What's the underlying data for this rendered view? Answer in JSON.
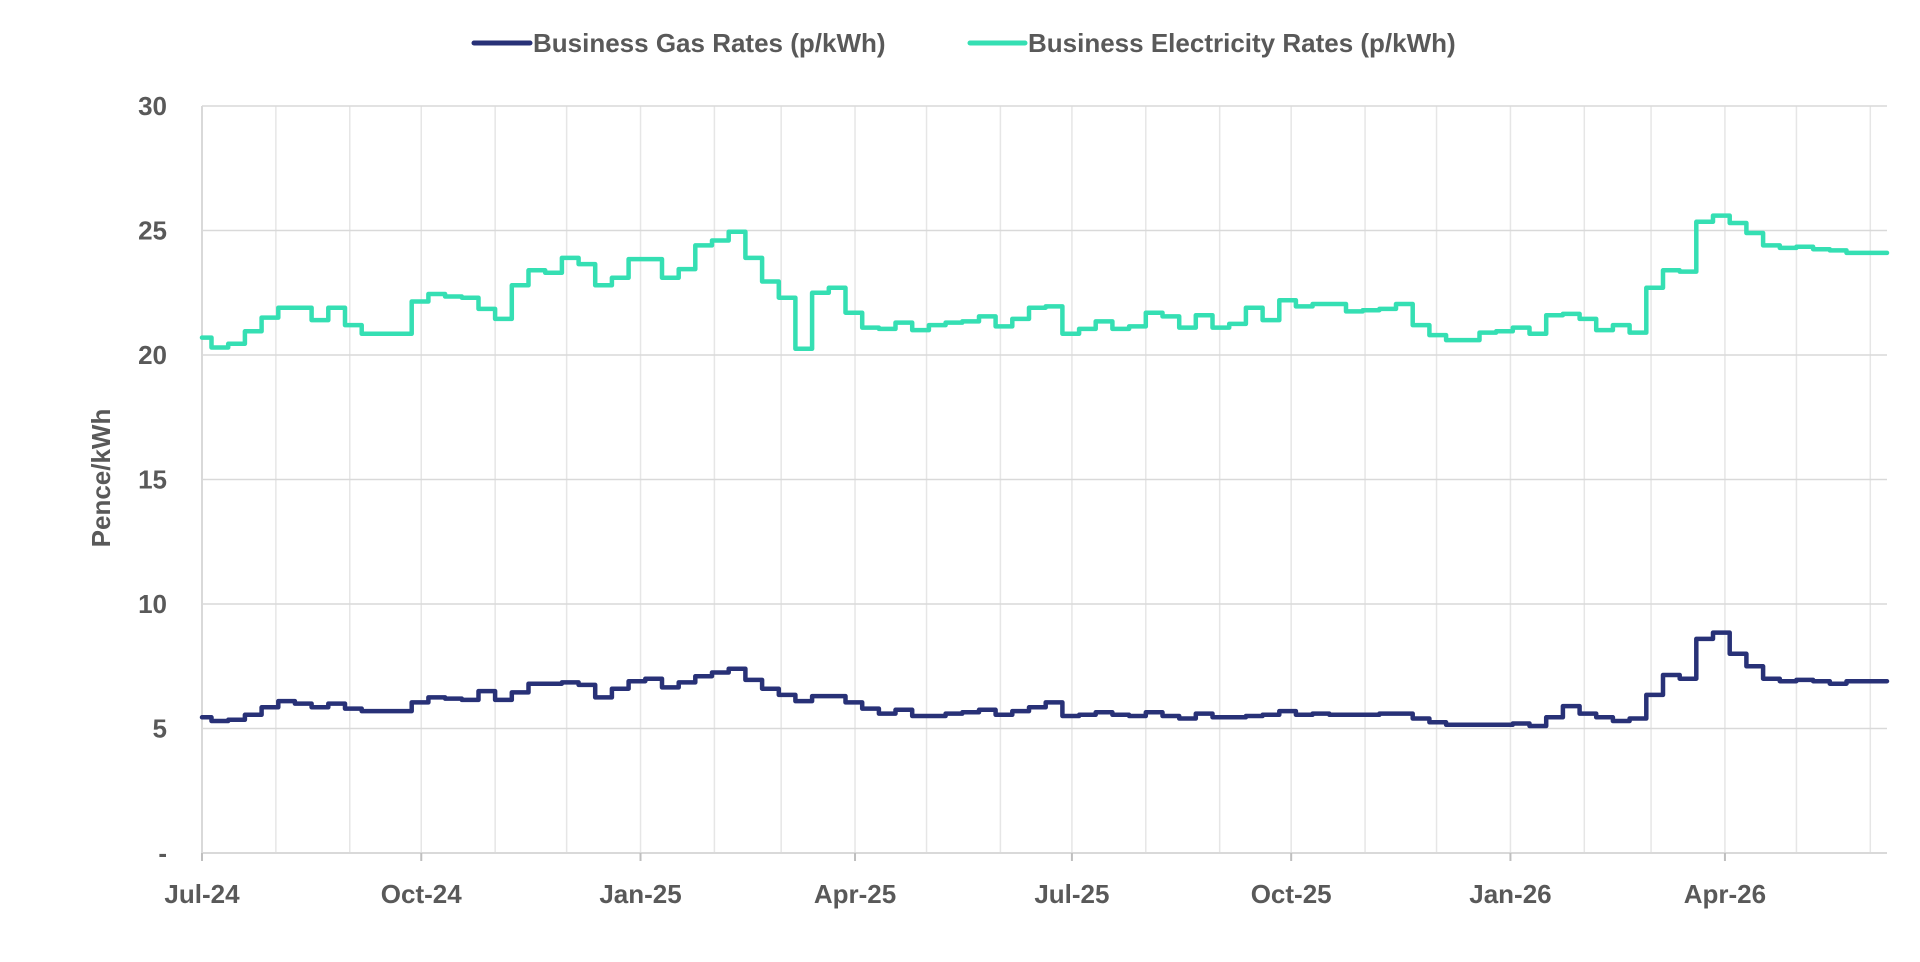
{
  "chart_data": {
    "type": "line",
    "ylabel": "Pence/kWh",
    "xlabel": "",
    "ylim": [
      0,
      30
    ],
    "y_ticks": [
      "-",
      "5",
      "10",
      "15",
      "20",
      "25",
      "30"
    ],
    "y_tick_values": [
      0,
      5,
      10,
      15,
      20,
      25,
      30
    ],
    "x_tick_labels": [
      "Jul-24",
      "Oct-24",
      "Jan-25",
      "Apr-25",
      "Jul-25",
      "Oct-25",
      "Jan-26",
      "Apr-26"
    ],
    "x_range": [
      "2024-07-01",
      "2026-06-08"
    ],
    "grid": {
      "horizontal": true,
      "vertical_monthly": true
    },
    "legend_position": "top-center",
    "step": true,
    "series": [
      {
        "name": "Business Gas Rates (p/kWh)",
        "color": "#283177",
        "points": [
          [
            "2024-07-01",
            5.45
          ],
          [
            "2024-07-05",
            5.3
          ],
          [
            "2024-07-12",
            5.35
          ],
          [
            "2024-07-19",
            5.55
          ],
          [
            "2024-07-26",
            5.85
          ],
          [
            "2024-08-02",
            6.1
          ],
          [
            "2024-08-09",
            6.0
          ],
          [
            "2024-08-16",
            5.85
          ],
          [
            "2024-08-23",
            6.0
          ],
          [
            "2024-08-30",
            5.8
          ],
          [
            "2024-09-06",
            5.7
          ],
          [
            "2024-09-13",
            5.7
          ],
          [
            "2024-09-20",
            5.7
          ],
          [
            "2024-09-27",
            6.05
          ],
          [
            "2024-10-04",
            6.25
          ],
          [
            "2024-10-11",
            6.2
          ],
          [
            "2024-10-18",
            6.15
          ],
          [
            "2024-10-25",
            6.5
          ],
          [
            "2024-11-01",
            6.15
          ],
          [
            "2024-11-08",
            6.45
          ],
          [
            "2024-11-15",
            6.8
          ],
          [
            "2024-11-22",
            6.8
          ],
          [
            "2024-11-29",
            6.85
          ],
          [
            "2024-12-06",
            6.75
          ],
          [
            "2024-12-13",
            6.25
          ],
          [
            "2024-12-20",
            6.6
          ],
          [
            "2024-12-27",
            6.9
          ],
          [
            "2025-01-03",
            7.0
          ],
          [
            "2025-01-10",
            6.65
          ],
          [
            "2025-01-17",
            6.85
          ],
          [
            "2025-01-24",
            7.1
          ],
          [
            "2025-01-31",
            7.25
          ],
          [
            "2025-02-07",
            7.4
          ],
          [
            "2025-02-14",
            6.95
          ],
          [
            "2025-02-21",
            6.6
          ],
          [
            "2025-02-28",
            6.35
          ],
          [
            "2025-03-07",
            6.1
          ],
          [
            "2025-03-14",
            6.3
          ],
          [
            "2025-03-21",
            6.3
          ],
          [
            "2025-03-28",
            6.05
          ],
          [
            "2025-04-04",
            5.8
          ],
          [
            "2025-04-11",
            5.6
          ],
          [
            "2025-04-18",
            5.75
          ],
          [
            "2025-04-25",
            5.5
          ],
          [
            "2025-05-02",
            5.5
          ],
          [
            "2025-05-09",
            5.6
          ],
          [
            "2025-05-16",
            5.65
          ],
          [
            "2025-05-23",
            5.75
          ],
          [
            "2025-05-30",
            5.55
          ],
          [
            "2025-06-06",
            5.7
          ],
          [
            "2025-06-13",
            5.85
          ],
          [
            "2025-06-20",
            6.05
          ],
          [
            "2025-06-27",
            5.5
          ],
          [
            "2025-07-04",
            5.55
          ],
          [
            "2025-07-11",
            5.65
          ],
          [
            "2025-07-18",
            5.55
          ],
          [
            "2025-07-25",
            5.5
          ],
          [
            "2025-08-01",
            5.65
          ],
          [
            "2025-08-08",
            5.5
          ],
          [
            "2025-08-15",
            5.4
          ],
          [
            "2025-08-22",
            5.6
          ],
          [
            "2025-08-29",
            5.45
          ],
          [
            "2025-09-05",
            5.45
          ],
          [
            "2025-09-12",
            5.5
          ],
          [
            "2025-09-19",
            5.55
          ],
          [
            "2025-09-26",
            5.7
          ],
          [
            "2025-10-03",
            5.55
          ],
          [
            "2025-10-10",
            5.6
          ],
          [
            "2025-10-17",
            5.55
          ],
          [
            "2025-10-24",
            5.55
          ],
          [
            "2025-10-31",
            5.55
          ],
          [
            "2025-11-07",
            5.6
          ],
          [
            "2025-11-14",
            5.6
          ],
          [
            "2025-11-21",
            5.4
          ],
          [
            "2025-11-28",
            5.25
          ],
          [
            "2025-12-05",
            5.15
          ],
          [
            "2025-12-12",
            5.15
          ],
          [
            "2025-12-19",
            5.15
          ],
          [
            "2025-12-26",
            5.15
          ],
          [
            "2026-01-02",
            5.2
          ],
          [
            "2026-01-09",
            5.1
          ],
          [
            "2026-01-16",
            5.45
          ],
          [
            "2026-01-23",
            5.9
          ],
          [
            "2026-01-30",
            5.6
          ],
          [
            "2026-02-06",
            5.45
          ],
          [
            "2026-02-13",
            5.3
          ],
          [
            "2026-02-20",
            5.4
          ],
          [
            "2026-02-27",
            6.35
          ],
          [
            "2026-03-06",
            7.15
          ],
          [
            "2026-03-13",
            7.0
          ],
          [
            "2026-03-20",
            8.6
          ],
          [
            "2026-03-27",
            8.85
          ],
          [
            "2026-04-03",
            8.0
          ],
          [
            "2026-04-10",
            7.5
          ],
          [
            "2026-04-17",
            7.0
          ],
          [
            "2026-04-24",
            6.9
          ],
          [
            "2026-05-01",
            6.95
          ],
          [
            "2026-05-08",
            6.9
          ],
          [
            "2026-05-15",
            6.8
          ],
          [
            "2026-05-22",
            6.9
          ],
          [
            "2026-06-08",
            6.9
          ]
        ]
      },
      {
        "name": "Business Electricity Rates (p/kWh)",
        "color": "#35DFB3",
        "points": [
          [
            "2024-07-01",
            20.7
          ],
          [
            "2024-07-05",
            20.3
          ],
          [
            "2024-07-12",
            20.45
          ],
          [
            "2024-07-19",
            20.95
          ],
          [
            "2024-07-26",
            21.5
          ],
          [
            "2024-08-02",
            21.9
          ],
          [
            "2024-08-09",
            21.9
          ],
          [
            "2024-08-16",
            21.4
          ],
          [
            "2024-08-23",
            21.9
          ],
          [
            "2024-08-30",
            21.2
          ],
          [
            "2024-09-06",
            20.85
          ],
          [
            "2024-09-13",
            20.85
          ],
          [
            "2024-09-20",
            20.85
          ],
          [
            "2024-09-27",
            22.15
          ],
          [
            "2024-10-04",
            22.45
          ],
          [
            "2024-10-11",
            22.35
          ],
          [
            "2024-10-18",
            22.3
          ],
          [
            "2024-10-25",
            21.85
          ],
          [
            "2024-11-01",
            21.45
          ],
          [
            "2024-11-08",
            22.8
          ],
          [
            "2024-11-15",
            23.4
          ],
          [
            "2024-11-22",
            23.3
          ],
          [
            "2024-11-29",
            23.9
          ],
          [
            "2024-12-06",
            23.65
          ],
          [
            "2024-12-13",
            22.8
          ],
          [
            "2024-12-20",
            23.1
          ],
          [
            "2024-12-27",
            23.85
          ],
          [
            "2025-01-03",
            23.85
          ],
          [
            "2025-01-10",
            23.1
          ],
          [
            "2025-01-17",
            23.45
          ],
          [
            "2025-01-24",
            24.4
          ],
          [
            "2025-01-31",
            24.6
          ],
          [
            "2025-02-07",
            24.95
          ],
          [
            "2025-02-14",
            23.9
          ],
          [
            "2025-02-21",
            22.95
          ],
          [
            "2025-02-28",
            22.3
          ],
          [
            "2025-03-07",
            20.25
          ],
          [
            "2025-03-14",
            22.5
          ],
          [
            "2025-03-21",
            22.7
          ],
          [
            "2025-03-28",
            21.7
          ],
          [
            "2025-04-04",
            21.1
          ],
          [
            "2025-04-11",
            21.05
          ],
          [
            "2025-04-18",
            21.3
          ],
          [
            "2025-04-25",
            21.0
          ],
          [
            "2025-05-02",
            21.2
          ],
          [
            "2025-05-09",
            21.3
          ],
          [
            "2025-05-16",
            21.35
          ],
          [
            "2025-05-23",
            21.55
          ],
          [
            "2025-05-30",
            21.15
          ],
          [
            "2025-06-06",
            21.45
          ],
          [
            "2025-06-13",
            21.9
          ],
          [
            "2025-06-20",
            21.95
          ],
          [
            "2025-06-27",
            20.85
          ],
          [
            "2025-07-04",
            21.05
          ],
          [
            "2025-07-11",
            21.35
          ],
          [
            "2025-07-18",
            21.05
          ],
          [
            "2025-07-25",
            21.15
          ],
          [
            "2025-08-01",
            21.7
          ],
          [
            "2025-08-08",
            21.55
          ],
          [
            "2025-08-15",
            21.1
          ],
          [
            "2025-08-22",
            21.6
          ],
          [
            "2025-08-29",
            21.1
          ],
          [
            "2025-09-05",
            21.25
          ],
          [
            "2025-09-12",
            21.9
          ],
          [
            "2025-09-19",
            21.4
          ],
          [
            "2025-09-26",
            22.2
          ],
          [
            "2025-10-03",
            21.95
          ],
          [
            "2025-10-10",
            22.05
          ],
          [
            "2025-10-17",
            22.05
          ],
          [
            "2025-10-24",
            21.75
          ],
          [
            "2025-10-31",
            21.8
          ],
          [
            "2025-11-07",
            21.85
          ],
          [
            "2025-11-14",
            22.05
          ],
          [
            "2025-11-21",
            21.2
          ],
          [
            "2025-11-28",
            20.8
          ],
          [
            "2025-12-05",
            20.6
          ],
          [
            "2025-12-12",
            20.6
          ],
          [
            "2025-12-19",
            20.9
          ],
          [
            "2025-12-26",
            20.95
          ],
          [
            "2026-01-02",
            21.1
          ],
          [
            "2026-01-09",
            20.85
          ],
          [
            "2026-01-16",
            21.6
          ],
          [
            "2026-01-23",
            21.65
          ],
          [
            "2026-01-30",
            21.45
          ],
          [
            "2026-02-06",
            21.0
          ],
          [
            "2026-02-13",
            21.2
          ],
          [
            "2026-02-20",
            20.9
          ],
          [
            "2026-02-27",
            22.7
          ],
          [
            "2026-03-06",
            23.4
          ],
          [
            "2026-03-13",
            23.35
          ],
          [
            "2026-03-20",
            25.35
          ],
          [
            "2026-03-27",
            25.6
          ],
          [
            "2026-04-03",
            25.3
          ],
          [
            "2026-04-10",
            24.9
          ],
          [
            "2026-04-17",
            24.4
          ],
          [
            "2026-04-24",
            24.3
          ],
          [
            "2026-05-01",
            24.35
          ],
          [
            "2026-05-08",
            24.25
          ],
          [
            "2026-05-15",
            24.2
          ],
          [
            "2026-05-22",
            24.1
          ],
          [
            "2026-06-08",
            24.1
          ]
        ]
      }
    ]
  }
}
